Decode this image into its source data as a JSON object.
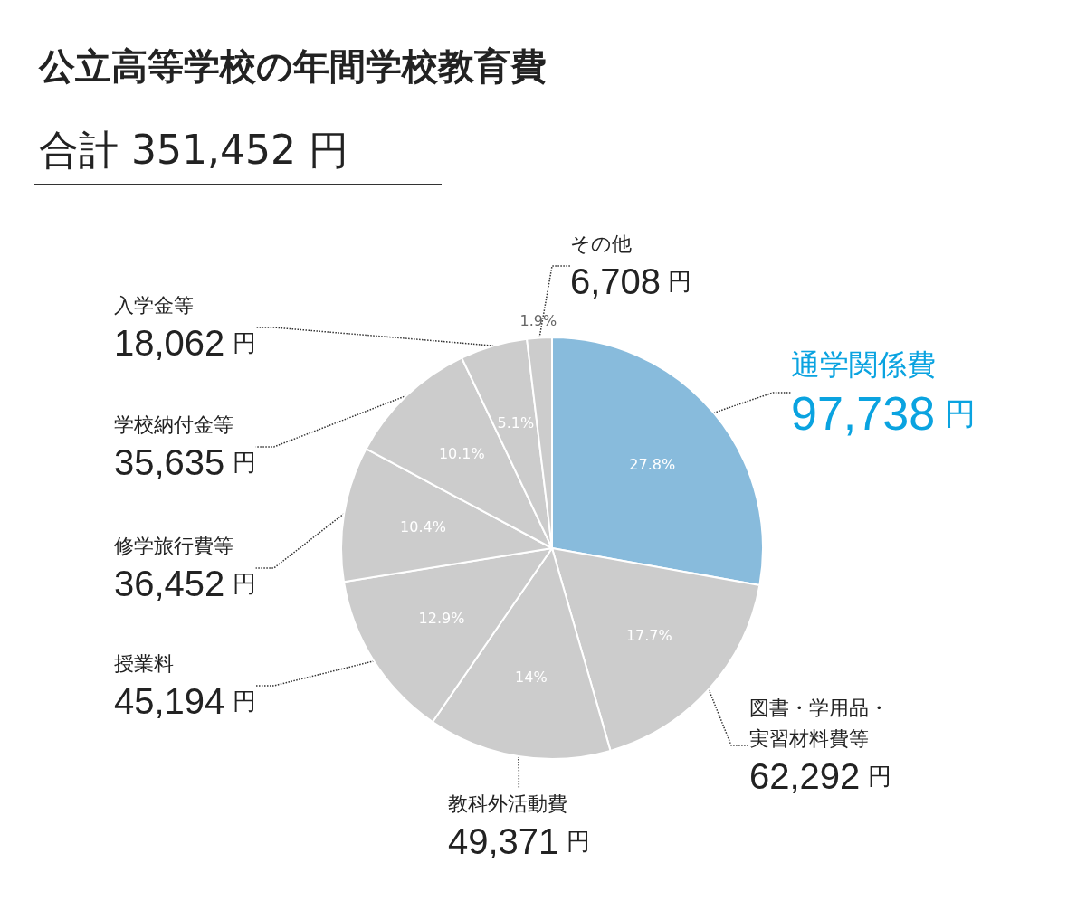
{
  "chart_data": {
    "type": "pie",
    "title": "公立高等学校の年間学校教育費",
    "subtitle": "合計 351,452 円",
    "categories": [
      "通学関係費",
      "図書・学用品・実習材料費等",
      "教科外活動費",
      "授業料",
      "修学旅行費等",
      "学校納付金等",
      "入学金等",
      "その他"
    ],
    "values": [
      97738,
      62292,
      49371,
      45194,
      36452,
      35635,
      18062,
      6708
    ],
    "value_labels": [
      "97,738 円",
      "62,292 円",
      "49,371 円",
      "45,194 円",
      "36,452 円",
      "35,635 円",
      "18,062 円",
      "6,708 円"
    ],
    "colors": [
      "#88bbdc",
      "#cccccc",
      "#cccccc",
      "#cccccc",
      "#cccccc",
      "#cccccc",
      "#cccccc",
      "#cccccc"
    ],
    "annotations": [
      "27.8%",
      "17.7%",
      "14%",
      "12.9%",
      "10.4%",
      "10.1%",
      "5.1%",
      "1.9%"
    ],
    "legend": false
  }
}
